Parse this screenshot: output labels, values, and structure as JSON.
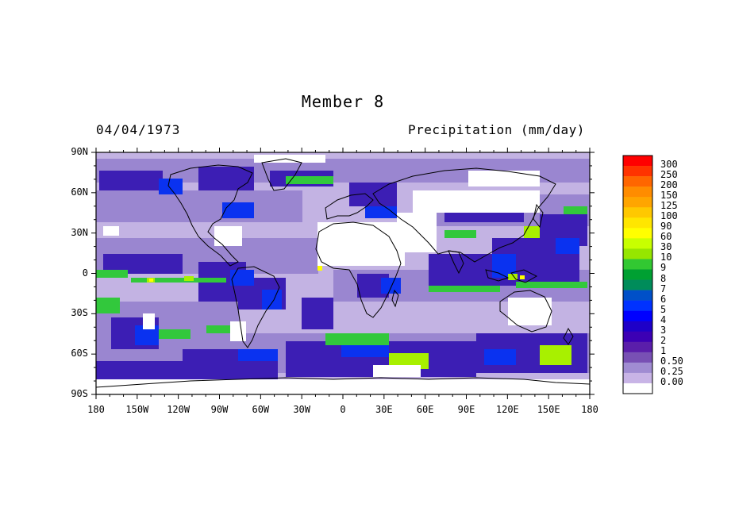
{
  "title": "Member 8",
  "date": "04/04/1973",
  "variable": "Precipitation (mm/day)",
  "lat_labels": [
    "90N",
    "60N",
    "30N",
    "0",
    "30S",
    "60S",
    "90S"
  ],
  "lon_labels": [
    "180",
    "150W",
    "120W",
    "90W",
    "60W",
    "30W",
    "0",
    "30E",
    "60E",
    "90E",
    "120E",
    "150E",
    "180"
  ],
  "colorbar": {
    "labels": [
      "300",
      "250",
      "200",
      "150",
      "125",
      "100",
      "90",
      "60",
      "30",
      "10",
      "9",
      "8",
      "7",
      "6",
      "5",
      "4",
      "3",
      "2",
      "1",
      "0.50",
      "0.25",
      "0.00"
    ],
    "colors": [
      "#ff0000",
      "#ff3300",
      "#ff6600",
      "#ff8c00",
      "#ffa500",
      "#ffc800",
      "#ffe600",
      "#ffff00",
      "#c8ff00",
      "#96e600",
      "#32c832",
      "#00a032",
      "#008c5a",
      "#0050c8",
      "#0032ff",
      "#0000ff",
      "#1e00c8",
      "#3c00b4",
      "#5a1eaa",
      "#7850b4",
      "#a08cd2",
      "#c8b4e6",
      "#ffffff"
    ]
  },
  "colors": {
    "background_field": "#b4a0dc",
    "coastline": "#000000"
  }
}
